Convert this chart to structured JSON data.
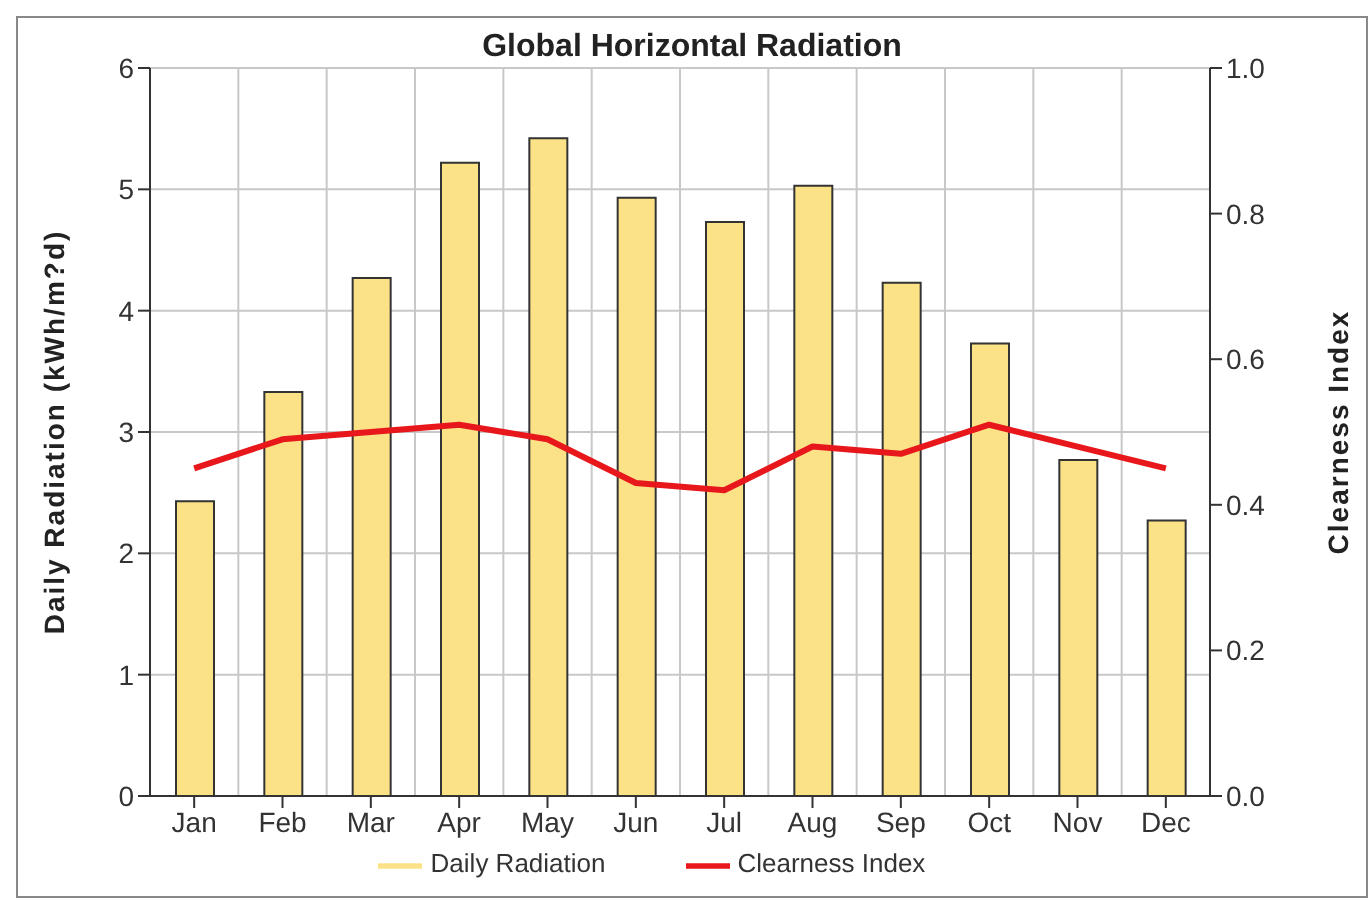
{
  "chart_data": {
    "type": "bar",
    "title": "Global Horizontal Radiation",
    "categories": [
      "Jan",
      "Feb",
      "Mar",
      "Apr",
      "May",
      "Jun",
      "Jul",
      "Aug",
      "Sep",
      "Oct",
      "Nov",
      "Dec"
    ],
    "series": [
      {
        "name": "Daily Radiation",
        "color": "#fbe287",
        "values": [
          2.43,
          3.33,
          4.27,
          5.22,
          5.42,
          4.93,
          4.73,
          5.03,
          4.23,
          3.73,
          2.77,
          2.27
        ]
      },
      {
        "name": "Clearness Index",
        "type": "line",
        "axis": "y2",
        "color": "#e8171b",
        "values": [
          0.45,
          0.49,
          0.5,
          0.51,
          0.49,
          0.43,
          0.42,
          0.48,
          0.47,
          0.51,
          0.48,
          0.45
        ]
      }
    ],
    "ylabel": "Daily Radiation (kWh/m?d)",
    "y2label": "Clearness Index",
    "ylim": [
      0,
      6
    ],
    "yticks": [
      0,
      1,
      2,
      3,
      4,
      5,
      6
    ],
    "y2lim": [
      0,
      1
    ],
    "y2ticks": [
      {
        "value": 0,
        "label": "0.0"
      },
      0.2,
      0.4,
      0.6,
      0.8,
      {
        "value": 1,
        "label": "1.0"
      }
    ],
    "grid": true,
    "legend": "bottom",
    "marker": "none",
    "line_style": "solid"
  }
}
